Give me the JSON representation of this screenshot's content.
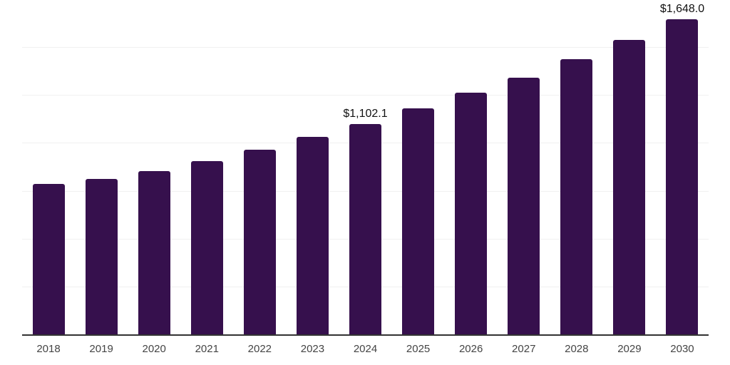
{
  "chart": {
    "background_color": "#ffffff",
    "bar_color": "#36104d",
    "gridline_color": "#f0f0f0",
    "axis_line_color": "#333333",
    "year_label_color": "#444444",
    "data_label_color": "#111111"
  },
  "chart_data": {
    "type": "bar",
    "title": "",
    "xlabel": "",
    "ylabel": "",
    "categories": [
      "2018",
      "2019",
      "2020",
      "2021",
      "2022",
      "2023",
      "2024",
      "2025",
      "2026",
      "2027",
      "2028",
      "2029",
      "2030"
    ],
    "values": [
      790,
      815,
      858,
      910,
      970,
      1035,
      1102.1,
      1185,
      1265,
      1345,
      1440,
      1540,
      1648.0
    ],
    "bar_labels": [
      "",
      "",
      "",
      "",
      "",
      "",
      "$1,102.1",
      "",
      "",
      "",
      "",
      "",
      "$1,648.0"
    ],
    "ylim": [
      0,
      1750
    ],
    "gridline_interval": 250,
    "grid": "horizontal",
    "legend": "none",
    "currency_prefix": "$"
  }
}
